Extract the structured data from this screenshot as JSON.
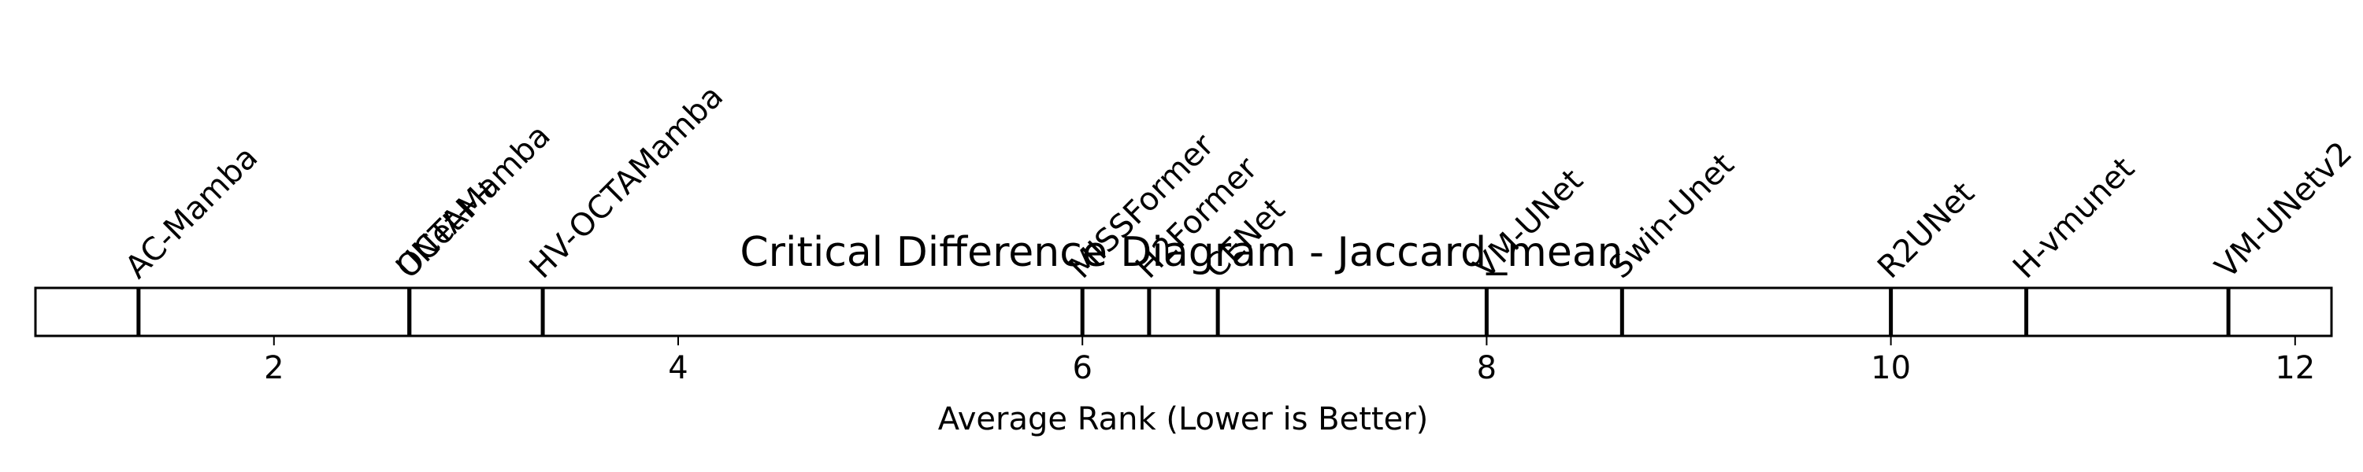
{
  "chart_data": {
    "type": "critical-difference",
    "title": "Critical Difference Diagram - Jaccard_mean",
    "xlabel": "Average Rank (Lower is Better)",
    "xlim": [
      0.82,
      12.18
    ],
    "xticks": [
      2,
      4,
      6,
      8,
      10,
      12
    ],
    "tick_labels": [
      "2",
      "4",
      "6",
      "8",
      "10",
      "12"
    ],
    "methods": [
      {
        "name": "AC-Mamba",
        "rank": 1.33
      },
      {
        "name": "OCTAMamba",
        "rank": 2.67
      },
      {
        "name": "UNet++",
        "rank": 2.67
      },
      {
        "name": "HV-OCTAMamba",
        "rank": 3.33
      },
      {
        "name": "MISSFormer",
        "rank": 6.0
      },
      {
        "name": "H2Former",
        "rank": 6.33
      },
      {
        "name": "CENet",
        "rank": 6.67
      },
      {
        "name": "VM-UNet",
        "rank": 8.0
      },
      {
        "name": "Swin-Unet",
        "rank": 8.67
      },
      {
        "name": "R2UNet",
        "rank": 10.0
      },
      {
        "name": "H-vmunet",
        "rank": 10.67
      },
      {
        "name": "VM-UNetv2",
        "rank": 11.67
      }
    ],
    "grid": false,
    "label_rotation_deg": -45
  }
}
